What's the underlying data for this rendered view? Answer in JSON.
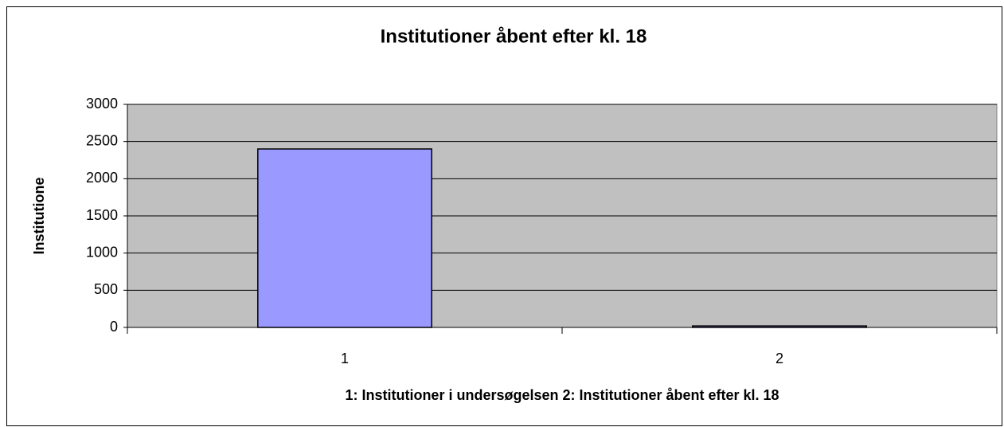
{
  "chart_data": {
    "type": "bar",
    "title": "Institutioner åbent efter kl. 18",
    "x_label": "1: Institutioner i undersøgelsen 2: Institutioner åbent efter kl. 18",
    "y_label": "Institutione",
    "categories": [
      "1",
      "2"
    ],
    "values": [
      2400,
      20
    ],
    "color": "#9999ff",
    "ylim": [
      0,
      3000
    ],
    "yticks": [
      0,
      500,
      1000,
      1500,
      2000,
      2500,
      3000
    ],
    "grid": true
  }
}
